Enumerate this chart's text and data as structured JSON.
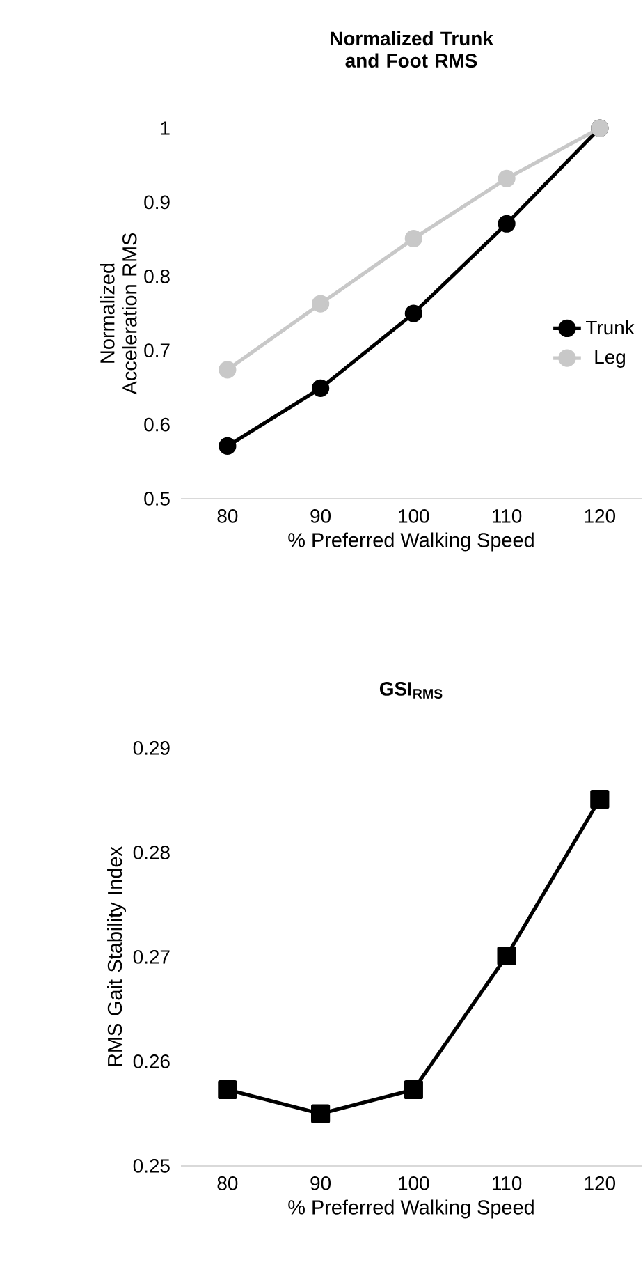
{
  "chart_data": [
    {
      "type": "line",
      "title": "Normalized Trunk and Foot RMS",
      "xlabel": "% Preferred Walking Speed",
      "ylabel": "Normalized Acceleration RMS",
      "categories": [
        "80",
        "90",
        "100",
        "110",
        "120"
      ],
      "series": [
        {
          "name": "Trunk",
          "color": "#000000",
          "values": [
            0.571,
            0.649,
            0.75,
            0.871,
            1.0
          ]
        },
        {
          "name": "Leg",
          "color": "#c8c8c8",
          "values": [
            0.674,
            0.763,
            0.851,
            0.932,
            1.0
          ]
        }
      ],
      "ylim": [
        0.5,
        1.0
      ],
      "yticks": [
        0.5,
        0.6,
        0.7,
        0.8,
        0.9,
        1
      ],
      "grid": false,
      "legend": "right",
      "marker": "circle",
      "line_style": "solid"
    },
    {
      "type": "line",
      "title": "GSI$_{RMS}$",
      "xlabel": "% Preferred Walking Speed",
      "ylabel": "RMS Gait Stability Index",
      "categories": [
        "80",
        "90",
        "100",
        "110",
        "120"
      ],
      "series": [
        {
          "color": "#000000",
          "values": [
            0.2573,
            0.255,
            0.2573,
            0.2701,
            0.2851
          ]
        }
      ],
      "ylim": [
        0.25,
        0.29
      ],
      "yticks": [
        0.25,
        0.26,
        0.27,
        0.28,
        0.29
      ],
      "grid": false,
      "legend": false,
      "marker": "square",
      "line_style": "solid"
    }
  ]
}
